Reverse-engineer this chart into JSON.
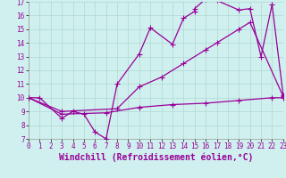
{
  "background_color": "#cff0ee",
  "line_color": "#990099",
  "grid_color": "#b0d8d0",
  "xlabel": "Windchill (Refroidissement éolien,°C)",
  "xlabel_fontsize": 7,
  "xlim": [
    0,
    23
  ],
  "ylim": [
    7,
    17
  ],
  "xticks": [
    0,
    1,
    2,
    3,
    4,
    5,
    6,
    7,
    8,
    9,
    10,
    11,
    12,
    13,
    14,
    15,
    16,
    17,
    18,
    19,
    20,
    21,
    22,
    23
  ],
  "yticks": [
    7,
    8,
    9,
    10,
    11,
    12,
    13,
    14,
    15,
    16,
    17
  ],
  "line1_x": [
    0,
    1,
    3,
    4,
    5,
    6,
    7,
    8,
    10,
    11,
    13,
    14,
    15,
    15,
    16,
    17,
    19,
    20,
    21,
    22,
    23
  ],
  "line1_y": [
    10,
    10,
    8.5,
    9.0,
    8.8,
    7.5,
    7.0,
    11.0,
    13.2,
    15.1,
    13.9,
    15.8,
    16.3,
    16.5,
    17.2,
    17.1,
    16.4,
    16.5,
    13.0,
    16.8,
    10.2
  ],
  "line2_x": [
    0,
    3,
    8,
    10,
    12,
    14,
    16,
    17,
    19,
    20,
    23
  ],
  "line2_y": [
    10,
    9.0,
    9.2,
    10.8,
    11.5,
    12.5,
    13.5,
    14.0,
    15.0,
    15.5,
    10.1
  ],
  "line3_x": [
    0,
    3,
    7,
    10,
    13,
    16,
    19,
    22,
    23
  ],
  "line3_y": [
    10,
    8.8,
    8.9,
    9.3,
    9.5,
    9.6,
    9.8,
    10.0,
    10.0
  ],
  "marker": "+",
  "markersize": 4,
  "linewidth": 0.9
}
